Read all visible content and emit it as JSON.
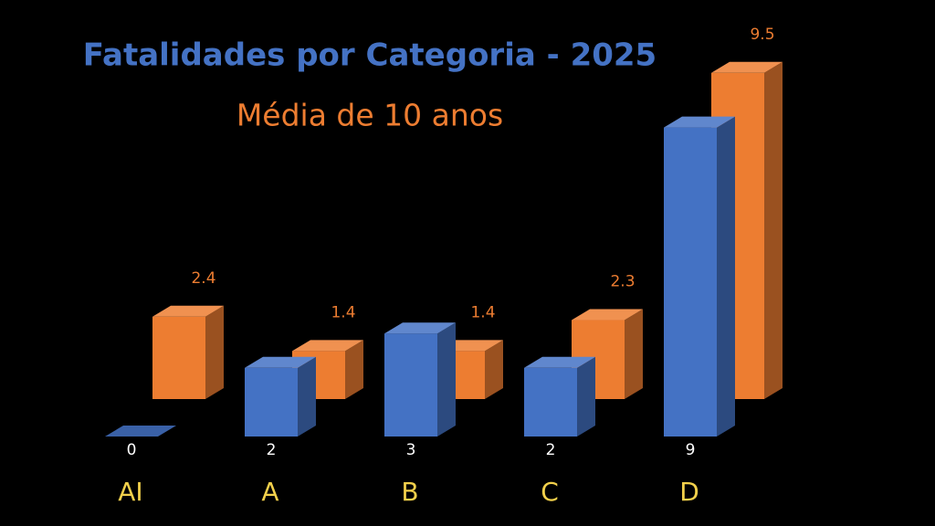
{
  "chart_data": {
    "type": "bar3d",
    "title": "Fatalidades por Categoria - 2025",
    "subtitle": "Média de 10 anos",
    "categories": [
      "AI",
      "A",
      "B",
      "C",
      "D"
    ],
    "series": [
      {
        "color": "#4472c4",
        "values": [
          0,
          2,
          3,
          2,
          9
        ]
      },
      {
        "color": "#ed7d31",
        "values": [
          2.4,
          1.4,
          1.4,
          2.3,
          9.5
        ]
      }
    ],
    "category_label_color": "#f2d04b",
    "background": "#000000"
  }
}
